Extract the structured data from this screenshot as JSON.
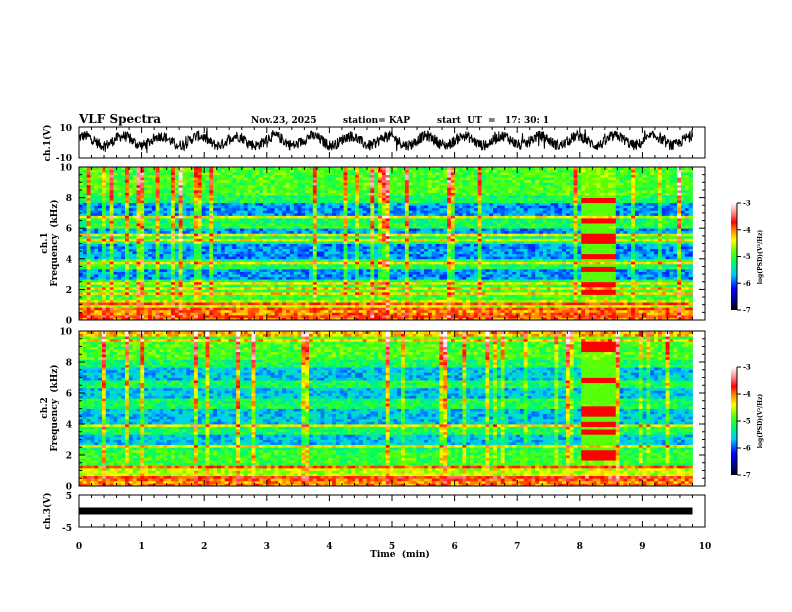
{
  "header": {
    "title": "VLF Spectra",
    "date": "Nov.23, 2025",
    "station": "station= KAP",
    "start": "start  UT  =   17: 30: 1"
  },
  "chart_data": [
    {
      "type": "line",
      "name": "ch1-waveform",
      "ylabel": "ch.1(V)",
      "ylim": [
        -10,
        10
      ],
      "yticks": [
        "10",
        "-10"
      ],
      "xlim": [
        0,
        10
      ],
      "data_end_min": 9.8,
      "description_of_signal": "noisy oscillating waveform roughly between -8 and 8 V"
    },
    {
      "type": "heatmap",
      "name": "ch1-spectrogram",
      "ylabel": "ch.1\nFrequency  (kHz)",
      "ylabel_top": "ch.1",
      "ylabel_bottom": "Frequency  (kHz)",
      "ylim": [
        0,
        10
      ],
      "yticks": [
        "0",
        "2",
        "4",
        "6",
        "8",
        "10"
      ],
      "xlim": [
        0,
        10
      ],
      "colorbar": {
        "label": "log(PSD)(V²/Hz)",
        "range": [
          -7,
          -3
        ],
        "ticks": [
          "-3",
          "-4",
          "-5",
          "-6",
          "-7"
        ],
        "colors": [
          "#000000",
          "#0000ff",
          "#00ffff",
          "#00ff00",
          "#ffff00",
          "#ff0000",
          "#ffffff"
        ]
      },
      "event_interval_min": [
        8.0,
        8.55
      ]
    },
    {
      "type": "heatmap",
      "name": "ch2-spectrogram",
      "ylabel_top": "ch.2",
      "ylabel_bottom": "Frequency  (kHz)",
      "ylim": [
        0,
        10
      ],
      "yticks": [
        "0",
        "2",
        "4",
        "6",
        "8",
        "10"
      ],
      "xlim": [
        0,
        10
      ],
      "colorbar": {
        "label": "log(PSD)(V²/Hz)",
        "range": [
          -7,
          -3
        ],
        "ticks": [
          "-3",
          "-4",
          "-5",
          "-6",
          "-7"
        ]
      },
      "event_interval_min": [
        8.0,
        8.55
      ]
    },
    {
      "type": "line",
      "name": "ch3-waveform",
      "ylabel": "ch.3(V)",
      "ylim": [
        -5,
        5
      ],
      "yticks": [
        "5",
        "-5"
      ],
      "xlim": [
        0,
        10
      ],
      "level_V": 0,
      "xlabel": "Time  (min)",
      "xticks": [
        "0",
        "1",
        "2",
        "3",
        "4",
        "5",
        "6",
        "7",
        "8",
        "9",
        "10"
      ]
    }
  ]
}
